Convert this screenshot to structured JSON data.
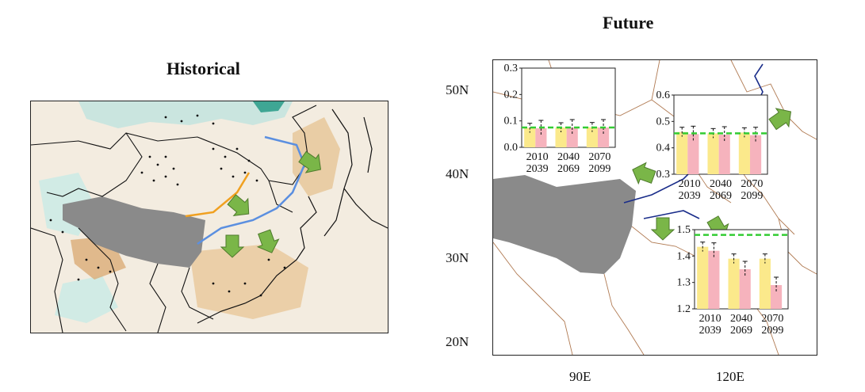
{
  "titles": {
    "historical": "Historical",
    "future": "Future"
  },
  "lat_labels": [
    "50N",
    "40N",
    "30N",
    "20N"
  ],
  "lon_labels": [
    "90E",
    "120E"
  ],
  "colors": {
    "bar_hist": "#fbe98b",
    "bar_fut": "#f6b3bd",
    "ref_line": "#33cc33",
    "arrow": "#7ab648",
    "border": "#b07a52",
    "tibet": "#8a8a8a",
    "orange_line": "#f0a020",
    "blue_line": "#5b8fe0",
    "navy_line": "#1a2d8a"
  },
  "chart_data": [
    {
      "type": "bar",
      "categories": [
        "2010\n2039",
        "2040\n2069",
        "2070\n2099"
      ],
      "ylim": [
        0.0,
        0.3
      ],
      "yticks": [
        "0.0",
        "0.1",
        "0.2",
        "0.3"
      ],
      "reference_line": 0.075,
      "series": [
        {
          "values": [
            0.073,
            0.075,
            0.076
          ]
        },
        {
          "values": [
            0.072,
            0.075,
            0.075
          ]
        }
      ]
    },
    {
      "type": "bar",
      "categories": [
        "2010\n2039",
        "2040\n2069",
        "2070\n2099"
      ],
      "ylim": [
        0.3,
        0.6
      ],
      "yticks": [
        "0.3",
        "0.4",
        "0.5",
        "0.6"
      ],
      "reference_line": 0.455,
      "series": [
        {
          "values": [
            0.46,
            0.455,
            0.458
          ]
        },
        {
          "values": [
            0.452,
            0.45,
            0.448
          ]
        }
      ]
    },
    {
      "type": "bar",
      "categories": [
        "2010\n2039",
        "2040\n2069",
        "2070\n2099"
      ],
      "ylim": [
        1.2,
        1.5
      ],
      "yticks": [
        "1.2",
        "1.3",
        "1.4",
        "1.5"
      ],
      "reference_line": 1.48,
      "series": [
        {
          "values": [
            1.435,
            1.39,
            1.39
          ]
        },
        {
          "values": [
            1.42,
            1.35,
            1.29
          ]
        }
      ]
    }
  ]
}
